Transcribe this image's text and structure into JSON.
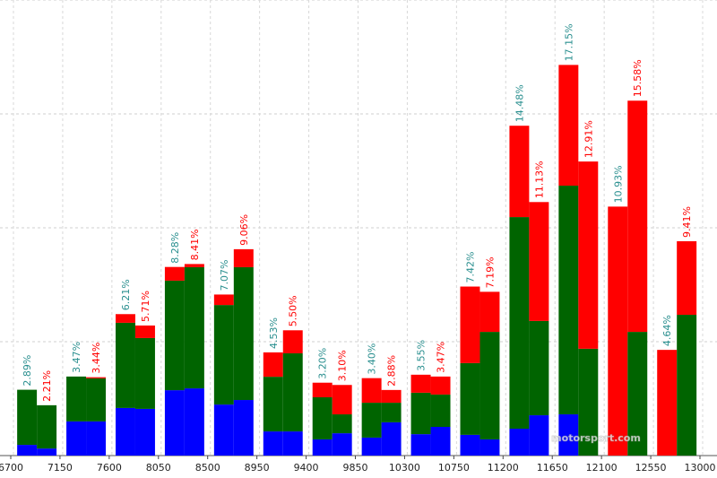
{
  "chart_data": {
    "type": "paired_stacked_bar",
    "xlim": [
      6700,
      13000
    ],
    "xticks": [
      6700,
      7150,
      7600,
      8050,
      8500,
      8950,
      9400,
      9850,
      10300,
      10750,
      11200,
      11650,
      12100,
      12550,
      13000
    ],
    "ylim": [
      0,
      20
    ],
    "yticks": [
      5,
      10,
      15,
      20
    ],
    "grid": true,
    "segment_colors": [
      "#0000ff",
      "#006400",
      "#ff0000"
    ],
    "label_colors": [
      "#2a8f8f",
      "#ff0000"
    ],
    "bars": [
      {
        "segments": [
          0.47,
          2.42,
          0
        ],
        "value_label": "2.89%"
      },
      {
        "segments": [
          0.31,
          1.9,
          0
        ],
        "value_label": "2.21%"
      },
      {
        "segments": [
          1.5,
          1.97,
          0
        ],
        "value_label": "3.47%"
      },
      {
        "segments": [
          1.5,
          1.89,
          0.05
        ],
        "value_label": "3.44%"
      },
      {
        "segments": [
          2.09,
          3.74,
          0.38
        ],
        "value_label": "6.21%"
      },
      {
        "segments": [
          2.05,
          3.11,
          0.55
        ],
        "value_label": "5.71%"
      },
      {
        "segments": [
          2.87,
          4.81,
          0.6
        ],
        "value_label": "8.28%"
      },
      {
        "segments": [
          2.95,
          5.32,
          0.14
        ],
        "value_label": "8.41%"
      },
      {
        "segments": [
          2.24,
          4.37,
          0.46
        ],
        "value_label": "7.07%"
      },
      {
        "segments": [
          2.44,
          5.83,
          0.79
        ],
        "value_label": "9.06%"
      },
      {
        "segments": [
          1.06,
          2.4,
          1.07
        ],
        "value_label": "4.53%"
      },
      {
        "segments": [
          1.06,
          3.43,
          1.01
        ],
        "value_label": "5.50%"
      },
      {
        "segments": [
          0.71,
          1.85,
          0.64
        ],
        "value_label": "3.20%"
      },
      {
        "segments": [
          0.98,
          0.83,
          1.29
        ],
        "value_label": "3.10%"
      },
      {
        "segments": [
          0.79,
          1.53,
          1.08
        ],
        "value_label": "3.40%"
      },
      {
        "segments": [
          1.46,
          0.86,
          0.56
        ],
        "value_label": "2.88%"
      },
      {
        "segments": [
          0.94,
          1.82,
          0.79
        ],
        "value_label": "3.55%"
      },
      {
        "segments": [
          1.26,
          1.42,
          0.79
        ],
        "value_label": "3.47%"
      },
      {
        "segments": [
          0.91,
          3.15,
          3.36
        ],
        "value_label": "7.42%"
      },
      {
        "segments": [
          0.71,
          4.72,
          1.76
        ],
        "value_label": "7.19%"
      },
      {
        "segments": [
          1.18,
          9.29,
          4.01
        ],
        "value_label": "14.48%"
      },
      {
        "segments": [
          1.77,
          4.14,
          5.22
        ],
        "value_label": "11.13%"
      },
      {
        "segments": [
          1.81,
          10.04,
          5.3
        ],
        "value_label": "17.15%"
      },
      {
        "segments": [
          0,
          4.69,
          8.22
        ],
        "value_label": "12.91%"
      },
      {
        "segments": [
          0,
          0,
          10.93
        ],
        "value_label": "10.93%"
      },
      {
        "segments": [
          0,
          5.43,
          10.15
        ],
        "value_label": "15.58%"
      },
      {
        "segments": [
          0,
          0,
          4.64
        ],
        "value_label": "4.64%"
      },
      {
        "segments": [
          0,
          6.18,
          3.23
        ],
        "value_label": "9.41%"
      }
    ],
    "watermark": "motorsport.com"
  }
}
